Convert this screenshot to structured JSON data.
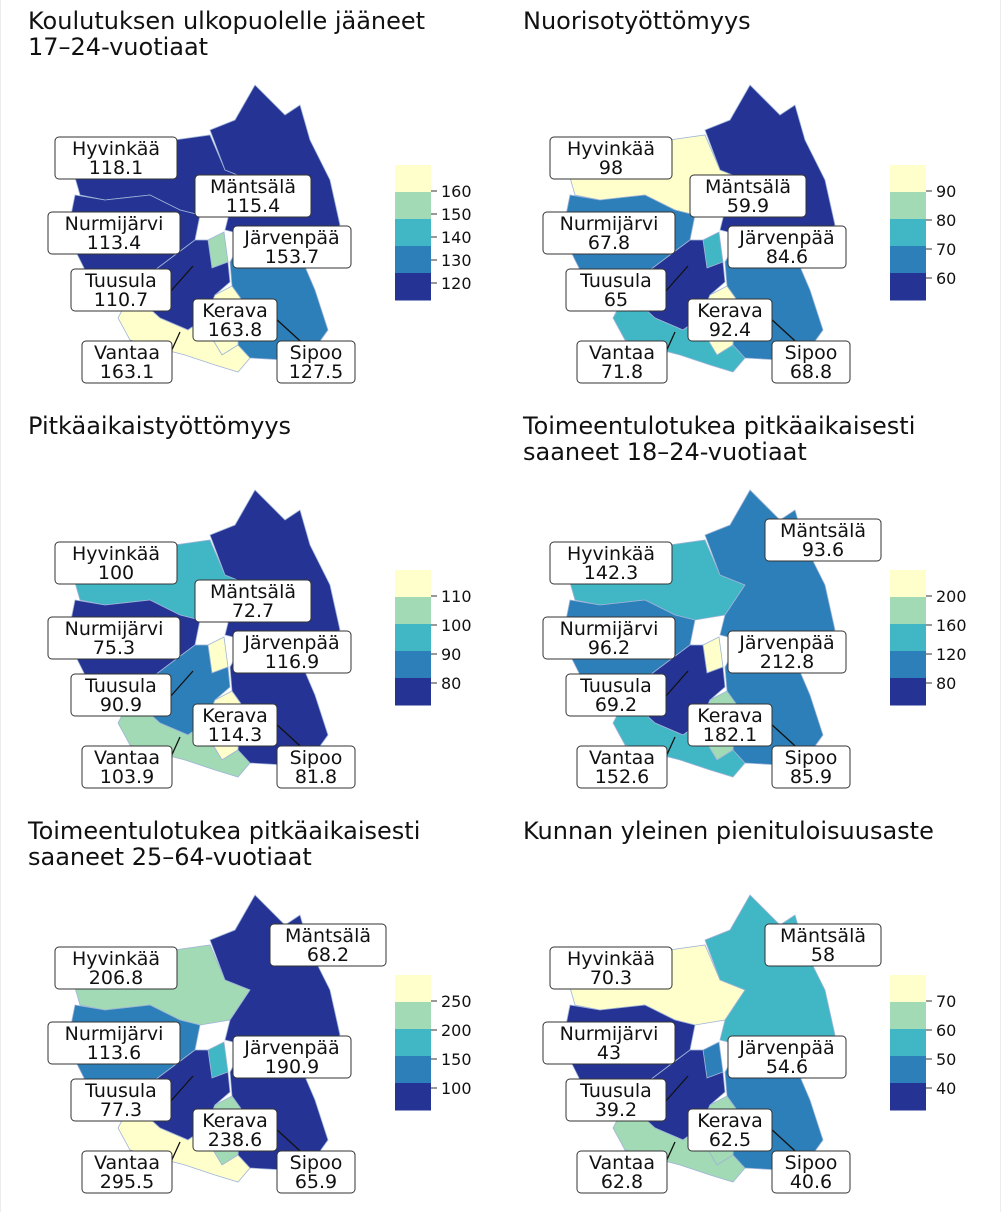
{
  "palette": [
    "#253494",
    "#2c7fb8",
    "#41b6c4",
    "#a1dab4",
    "#ffffcc"
  ],
  "panels": [
    {
      "title": "Koulutuksen ulkopuolelle jääneet\n17–24-vuotiaat",
      "ticks": [
        "160",
        "150",
        "140",
        "130",
        "120"
      ],
      "levels": {
        "Hyvinkää": 0,
        "Mäntsälä": 0,
        "Nurmijärvi": 0,
        "Järvenpää": 3,
        "Tuusula": 0,
        "Kerava": 4,
        "Vantaa": 4,
        "Sipoo": 1
      },
      "labels": [
        {
          "name": "Hyvinkää",
          "value": "118.1"
        },
        {
          "name": "Mäntsälä",
          "value": "115.4"
        },
        {
          "name": "Nurmijärvi",
          "value": "113.4"
        },
        {
          "name": "Järvenpää",
          "value": "153.7"
        },
        {
          "name": "Tuusula",
          "value": "110.7"
        },
        {
          "name": "Kerava",
          "value": "163.8"
        },
        {
          "name": "Vantaa",
          "value": "163.1"
        },
        {
          "name": "Sipoo",
          "value": "127.5"
        }
      ]
    },
    {
      "title": "Nuorisotyöttömyys",
      "ticks": [
        "90",
        "80",
        "70",
        "60"
      ],
      "levels": {
        "Hyvinkää": 4,
        "Mäntsälä": 0,
        "Nurmijärvi": 1,
        "Järvenpää": 2,
        "Tuusula": 0,
        "Kerava": 4,
        "Vantaa": 2,
        "Sipoo": 1
      },
      "labels": [
        {
          "name": "Hyvinkää",
          "value": "98"
        },
        {
          "name": "Mäntsälä",
          "value": "59.9"
        },
        {
          "name": "Nurmijärvi",
          "value": "67.8"
        },
        {
          "name": "Järvenpää",
          "value": "84.6"
        },
        {
          "name": "Tuusula",
          "value": "65"
        },
        {
          "name": "Kerava",
          "value": "92.4"
        },
        {
          "name": "Vantaa",
          "value": "71.8"
        },
        {
          "name": "Sipoo",
          "value": "68.8"
        }
      ]
    },
    {
      "title": "Pitkäaikaistyöttömyys",
      "ticks": [
        "110",
        "100",
        "90",
        "80"
      ],
      "levels": {
        "Hyvinkää": 2,
        "Mäntsälä": 0,
        "Nurmijärvi": 0,
        "Järvenpää": 4,
        "Tuusula": 1,
        "Kerava": 4,
        "Vantaa": 3,
        "Sipoo": 0
      },
      "labels": [
        {
          "name": "Hyvinkää",
          "value": "100"
        },
        {
          "name": "Mäntsälä",
          "value": "72.7"
        },
        {
          "name": "Nurmijärvi",
          "value": "75.3"
        },
        {
          "name": "Järvenpää",
          "value": "116.9"
        },
        {
          "name": "Tuusula",
          "value": "90.9"
        },
        {
          "name": "Kerava",
          "value": "114.3"
        },
        {
          "name": "Vantaa",
          "value": "103.9"
        },
        {
          "name": "Sipoo",
          "value": "81.8"
        }
      ]
    },
    {
      "title": "Toimeentulotukea pitkäaikaisesti\nsaaneet 18–24-vuotiaat",
      "ticks": [
        "200",
        "160",
        "120",
        "80"
      ],
      "levels": {
        "Hyvinkää": 2,
        "Mäntsälä": 1,
        "Nurmijärvi": 1,
        "Järvenpää": 4,
        "Tuusula": 0,
        "Kerava": 3,
        "Vantaa": 2,
        "Sipoo": 1
      },
      "labels": [
        {
          "name": "Hyvinkää",
          "value": "142.3"
        },
        {
          "name": "Mäntsälä",
          "value": "93.6"
        },
        {
          "name": "Nurmijärvi",
          "value": "96.2"
        },
        {
          "name": "Järvenpää",
          "value": "212.8"
        },
        {
          "name": "Tuusula",
          "value": "69.2"
        },
        {
          "name": "Kerava",
          "value": "182.1"
        },
        {
          "name": "Vantaa",
          "value": "152.6"
        },
        {
          "name": "Sipoo",
          "value": "85.9"
        }
      ]
    },
    {
      "title": "Toimeentulotukea pitkäaikaisesti\nsaaneet 25–64-vuotiaat",
      "ticks": [
        "250",
        "200",
        "150",
        "100"
      ],
      "levels": {
        "Hyvinkää": 3,
        "Mäntsälä": 0,
        "Nurmijärvi": 1,
        "Järvenpää": 2,
        "Tuusula": 0,
        "Kerava": 3,
        "Vantaa": 4,
        "Sipoo": 0
      },
      "labels": [
        {
          "name": "Hyvinkää",
          "value": "206.8"
        },
        {
          "name": "Mäntsälä",
          "value": "68.2"
        },
        {
          "name": "Nurmijärvi",
          "value": "113.6"
        },
        {
          "name": "Järvenpää",
          "value": "190.9"
        },
        {
          "name": "Tuusula",
          "value": "77.3"
        },
        {
          "name": "Kerava",
          "value": "238.6"
        },
        {
          "name": "Vantaa",
          "value": "295.5"
        },
        {
          "name": "Sipoo",
          "value": "65.9"
        }
      ]
    },
    {
      "title": "Kunnan yleinen pienituloisuusaste",
      "ticks": [
        "70",
        "60",
        "50",
        "40"
      ],
      "levels": {
        "Hyvinkää": 4,
        "Mäntsälä": 2,
        "Nurmijärvi": 0,
        "Järvenpää": 1,
        "Tuusula": 0,
        "Kerava": 3,
        "Vantaa": 3,
        "Sipoo": 1
      },
      "labels": [
        {
          "name": "Hyvinkää",
          "value": "70.3"
        },
        {
          "name": "Mäntsälä",
          "value": "58"
        },
        {
          "name": "Nurmijärvi",
          "value": "43"
        },
        {
          "name": "Järvenpää",
          "value": "54.6"
        },
        {
          "name": "Tuusula",
          "value": "39.2"
        },
        {
          "name": "Kerava",
          "value": "62.5"
        },
        {
          "name": "Vantaa",
          "value": "62.8"
        },
        {
          "name": "Sipoo",
          "value": "40.6"
        }
      ]
    }
  ]
}
